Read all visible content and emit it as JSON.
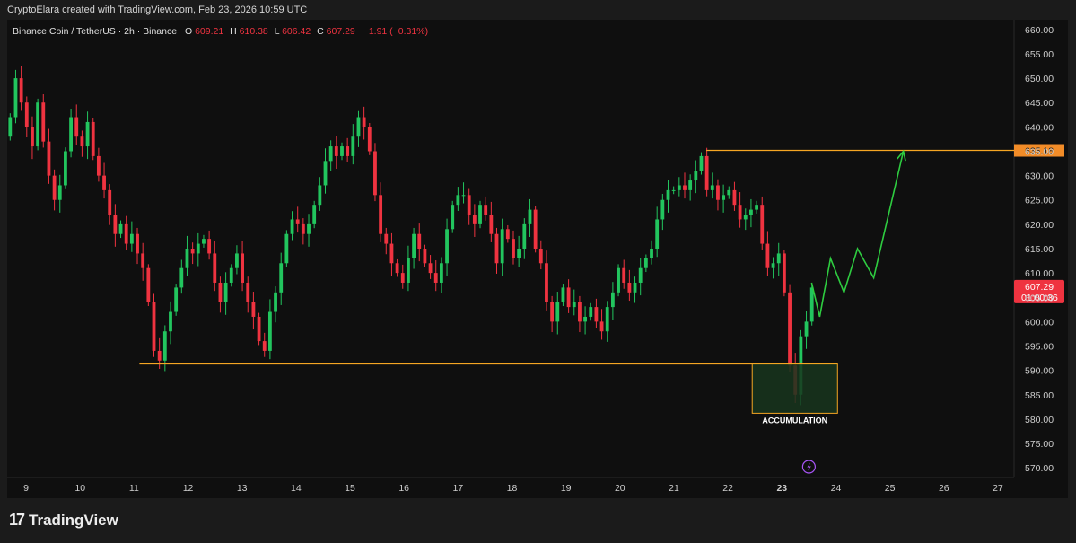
{
  "attribution": "CryptoElara created with TradingView.com, Feb 23, 2026 10:59 UTC",
  "brand": {
    "logo_glyph": "17",
    "name": "TradingView"
  },
  "legend": {
    "symbol": "Binance Coin / TetherUS · 2h · Binance",
    "o_label": "O",
    "o_value": "609.21",
    "h_label": "H",
    "h_value": "610.38",
    "l_label": "L",
    "l_value": "606.42",
    "c_label": "C",
    "c_value": "607.29",
    "change": "−1.91 (−0.31%)"
  },
  "colors": {
    "up": "#22c55e",
    "down": "#ef3340",
    "level": "#f5a623",
    "projection": "#2ecc40",
    "accumulation_fill": "#17351d",
    "axis_text": "#cfcfcf",
    "background": "#0f0f0f"
  },
  "chart_data": {
    "type": "candlestick",
    "ylim": [
      568,
      662
    ],
    "y_ticks": [
      "570.00",
      "575.00",
      "580.00",
      "585.00",
      "590.00",
      "595.00",
      "600.00",
      "605.00",
      "610.00",
      "615.00",
      "620.00",
      "625.00",
      "630.00",
      "635.00",
      "640.00",
      "645.00",
      "650.00",
      "655.00",
      "660.00"
    ],
    "x_ticks": [
      {
        "label": "9",
        "x": 0.3
      },
      {
        "label": "10",
        "x": 1.3
      },
      {
        "label": "11",
        "x": 2.3
      },
      {
        "label": "12",
        "x": 3.3
      },
      {
        "label": "13",
        "x": 4.3
      },
      {
        "label": "14",
        "x": 5.3
      },
      {
        "label": "15",
        "x": 6.3
      },
      {
        "label": "16",
        "x": 7.3
      },
      {
        "label": "17",
        "x": 8.3
      },
      {
        "label": "18",
        "x": 9.3
      },
      {
        "label": "19",
        "x": 10.3
      },
      {
        "label": "20",
        "x": 11.3
      },
      {
        "label": "21",
        "x": 12.3
      },
      {
        "label": "22",
        "x": 13.3
      },
      {
        "label": "23",
        "x": 14.3,
        "bold": true
      },
      {
        "label": "24",
        "x": 15.3
      },
      {
        "label": "25",
        "x": 16.3
      },
      {
        "label": "26",
        "x": 17.3
      },
      {
        "label": "27",
        "x": 18.3
      }
    ],
    "xlim": [
      -0.05,
      18.6
    ],
    "closes": [
      642,
      650,
      645,
      640,
      636,
      645,
      637,
      630,
      625,
      628,
      635,
      642,
      638,
      636,
      641,
      634,
      630,
      627,
      622,
      618,
      620,
      616,
      618,
      614,
      611,
      604,
      594,
      592,
      598,
      602,
      607,
      611,
      615,
      614,
      616,
      617,
      614,
      608,
      604,
      608,
      611,
      614,
      608,
      604,
      601,
      596,
      594,
      602,
      606,
      612,
      618,
      621,
      620,
      618,
      620,
      624,
      628,
      633,
      636,
      634,
      636,
      634,
      638,
      642,
      640,
      635,
      626,
      618,
      616,
      612,
      610,
      608,
      613,
      618,
      615,
      612,
      610,
      608,
      612,
      619,
      624,
      626,
      626,
      622,
      620,
      624,
      622,
      618,
      612,
      619,
      617,
      613,
      615,
      620,
      623,
      615,
      612,
      604,
      600,
      604,
      607,
      603,
      604,
      600,
      601,
      603,
      600,
      598,
      603,
      606,
      611,
      608,
      606,
      608,
      611,
      613,
      615,
      621,
      625,
      627,
      627,
      628,
      627,
      629,
      631,
      634,
      627,
      628,
      625,
      626,
      627,
      624,
      621,
      622,
      623,
      624,
      616,
      611,
      612,
      614,
      606,
      591,
      585,
      597,
      600,
      607
    ],
    "current_price": "607.29",
    "countdown": "01:00:36",
    "resistance": {
      "label": "635.18",
      "price": 635.18,
      "from_x": 12.9
    },
    "support": {
      "price": 591.3,
      "from_x": 2.4
    },
    "accumulation": {
      "label": "ACCUMULATION",
      "x0": 13.75,
      "x1": 15.33,
      "y_low": 581.2,
      "y_high": 591.3
    },
    "projection": [
      {
        "x": 14.85,
        "price": 608
      },
      {
        "x": 15.0,
        "price": 601
      },
      {
        "x": 15.2,
        "price": 613
      },
      {
        "x": 15.45,
        "price": 606
      },
      {
        "x": 15.7,
        "price": 615
      },
      {
        "x": 16.0,
        "price": 609
      },
      {
        "x": 16.55,
        "price": 635
      }
    ],
    "event_marker_x": 14.8,
    "event_marker_icon": "lightning-icon"
  }
}
